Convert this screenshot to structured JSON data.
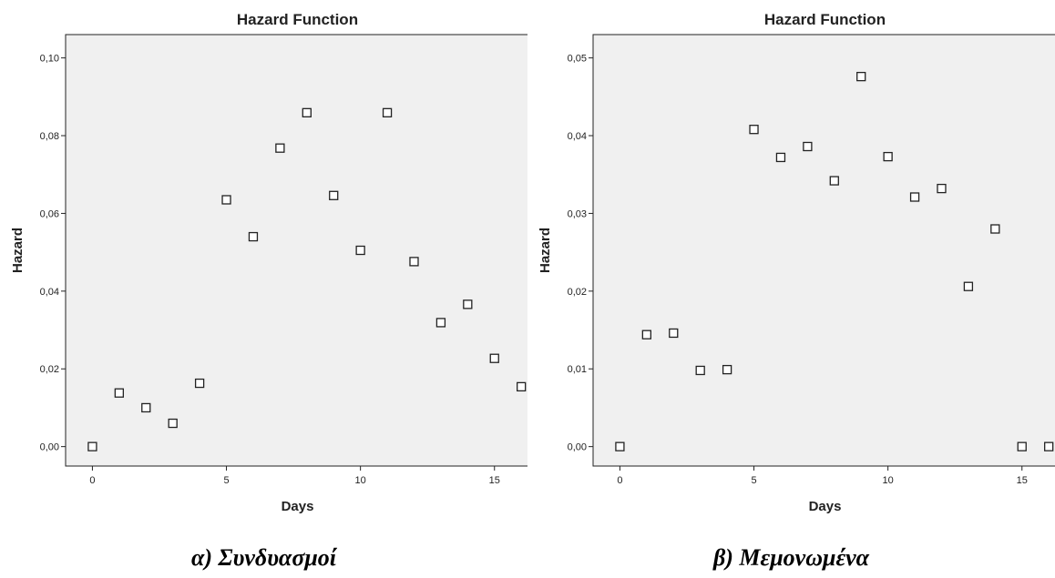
{
  "chart_data": [
    {
      "type": "scatter",
      "title": "Hazard Function",
      "xlabel": "Days",
      "ylabel": "Hazard",
      "xlim": [
        -1,
        16.3
      ],
      "ylim": [
        -0.005,
        0.106
      ],
      "xticks": [
        0,
        5,
        10,
        15
      ],
      "xtick_labels": [
        "0",
        "5",
        "10",
        "15"
      ],
      "yticks": [
        0.0,
        0.02,
        0.04,
        0.06,
        0.08,
        0.1
      ],
      "ytick_labels": [
        "0,00",
        "0,02",
        "0,04",
        "0,06",
        "0,08",
        "0,10"
      ],
      "grid": false,
      "marker": "hollow-square",
      "x": [
        0,
        1,
        2,
        3,
        4,
        5,
        6,
        7,
        8,
        9,
        10,
        11,
        12,
        13,
        14,
        15,
        16
      ],
      "y": [
        0.0,
        0.0138,
        0.01,
        0.006,
        0.0163,
        0.0635,
        0.054,
        0.0768,
        0.0859,
        0.0646,
        0.0505,
        0.0859,
        0.0476,
        0.0319,
        0.0366,
        0.0227,
        0.0154
      ],
      "caption": "α) Συνδυασμοί"
    },
    {
      "type": "scatter",
      "title": "Hazard Function",
      "xlabel": "Days",
      "ylabel": "Hazard",
      "xlim": [
        -1,
        16.3
      ],
      "ylim": [
        -0.0025,
        0.053
      ],
      "xticks": [
        0,
        5,
        10,
        15
      ],
      "xtick_labels": [
        "0",
        "5",
        "10",
        "15"
      ],
      "yticks": [
        0.0,
        0.01,
        0.02,
        0.03,
        0.04,
        0.05
      ],
      "ytick_labels": [
        "0,00",
        "0,01",
        "0,02",
        "0,03",
        "0,04",
        "0,05"
      ],
      "grid": false,
      "marker": "hollow-square",
      "x": [
        0,
        1,
        2,
        3,
        4,
        5,
        6,
        7,
        8,
        9,
        10,
        11,
        12,
        13,
        14,
        15,
        16
      ],
      "y": [
        0.0,
        0.0144,
        0.0146,
        0.0098,
        0.0099,
        0.0408,
        0.0372,
        0.0386,
        0.0342,
        0.0476,
        0.0373,
        0.0321,
        0.0332,
        0.0206,
        0.028,
        0.0,
        0.0
      ],
      "caption": "β) Μεμονωμένα"
    }
  ]
}
